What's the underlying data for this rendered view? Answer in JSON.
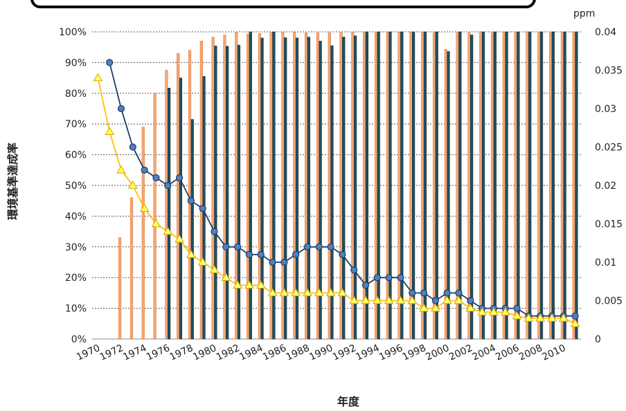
{
  "chart_data": {
    "type": "bar",
    "title": "",
    "xlabel": "年度",
    "ylabel_left": "環境基準達成率",
    "ylabel_right": "ppm",
    "ylim_left": [
      0,
      100
    ],
    "ylim_right": [
      0,
      0.04
    ],
    "left_ticks": [
      "0%",
      "10%",
      "20%",
      "30%",
      "40%",
      "50%",
      "60%",
      "70%",
      "80%",
      "90%",
      "100%"
    ],
    "right_ticks": [
      "0",
      "0.005",
      "0.01",
      "0.015",
      "0.02",
      "0.025",
      "0.03",
      "0.035",
      "0.04"
    ],
    "x_tick_labels": [
      "1970",
      "1972",
      "1974",
      "1976",
      "1978",
      "1980",
      "1982",
      "1984",
      "1986",
      "1988",
      "1990",
      "1992",
      "1994",
      "1996",
      "1998",
      "2000",
      "2002",
      "2004",
      "2006",
      "2008",
      "2010"
    ],
    "years": [
      1970,
      1971,
      1972,
      1973,
      1974,
      1975,
      1976,
      1977,
      1978,
      1979,
      1980,
      1981,
      1982,
      1983,
      1984,
      1985,
      1986,
      1987,
      1988,
      1989,
      1990,
      1991,
      1992,
      1993,
      1994,
      1995,
      1996,
      1997,
      1998,
      1999,
      2000,
      2001,
      2002,
      2003,
      2004,
      2005,
      2006,
      2007,
      2008,
      2009,
      2010,
      2011
    ],
    "grid": true,
    "bar_series": [
      {
        "color": "#f4a672",
        "values": [
          null,
          null,
          33,
          46,
          69,
          80,
          87.5,
          93,
          94,
          97,
          98.3,
          99,
          99.8,
          99.3,
          99.5,
          99.8,
          99.8,
          99.8,
          99.7,
          99.7,
          99.7,
          99.8,
          99.8,
          100,
          100,
          100,
          100,
          100,
          100,
          100,
          94.3,
          99.8,
          99.8,
          100,
          100,
          100,
          100,
          100,
          100,
          100,
          100,
          100
        ]
      },
      {
        "color": "#1f4e60",
        "values": [
          null,
          null,
          null,
          null,
          null,
          null,
          81.7,
          85,
          71.5,
          85.5,
          95.4,
          95.3,
          95.7,
          100,
          98,
          100,
          98.1,
          98,
          98.3,
          97,
          95.5,
          98.3,
          98.7,
          100,
          100,
          100,
          100,
          100,
          100,
          100,
          93.6,
          100,
          99,
          100,
          100,
          100,
          100,
          100,
          100,
          100,
          100,
          100
        ]
      }
    ],
    "line_series": [
      {
        "axis": "right",
        "color": "#1f3a66",
        "marker": "circle",
        "marker_color": "#4f81bd",
        "values": [
          null,
          0.036,
          0.03,
          0.025,
          0.022,
          0.021,
          0.02,
          0.021,
          0.018,
          0.017,
          0.014,
          0.012,
          0.012,
          0.011,
          0.011,
          0.01,
          0.01,
          0.011,
          0.012,
          0.012,
          0.012,
          0.011,
          0.009,
          0.007,
          0.008,
          0.008,
          0.008,
          0.006,
          0.006,
          0.005,
          0.006,
          0.006,
          0.005,
          0.004,
          0.004,
          0.004,
          0.004,
          0.003,
          0.003,
          0.003,
          0.003,
          0.003
        ]
      },
      {
        "axis": "right",
        "color": "#ffc000",
        "marker": "triangle",
        "marker_color": "#ffff66",
        "values": [
          0.034,
          0.027,
          0.022,
          0.02,
          0.017,
          0.015,
          0.014,
          0.013,
          0.011,
          0.01,
          0.009,
          0.008,
          0.007,
          0.007,
          0.007,
          0.006,
          0.006,
          0.006,
          0.006,
          0.006,
          0.006,
          0.006,
          0.005,
          0.005,
          0.005,
          0.005,
          0.005,
          0.005,
          0.004,
          0.004,
          0.005,
          0.005,
          0.004,
          0.0035,
          0.0035,
          0.0035,
          0.003,
          0.0027,
          0.0027,
          0.0027,
          0.0027,
          0.002
        ]
      }
    ]
  }
}
